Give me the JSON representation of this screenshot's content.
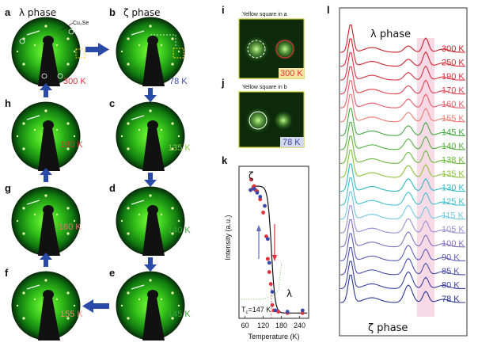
{
  "panels": [
    {
      "id": "a",
      "label": "a",
      "title": "λ phase",
      "temp": "300 K",
      "temp_color": "#e0303a",
      "note": "Cu₂Se"
    },
    {
      "id": "b",
      "label": "b",
      "title": "ζ phase",
      "temp": "78 K",
      "temp_color": "#3a4aa8"
    },
    {
      "id": "c",
      "label": "c",
      "temp": "135 K",
      "temp_color": "#8cc63f"
    },
    {
      "id": "d",
      "label": "d",
      "temp": "140 K",
      "temp_color": "#3aa83a"
    },
    {
      "id": "e",
      "label": "e",
      "temp": "145 K",
      "temp_color": "#3aa83a"
    },
    {
      "id": "f",
      "label": "f",
      "temp": "155 K",
      "temp_color": "#f08a7a"
    },
    {
      "id": "g",
      "label": "g",
      "temp": "160 K",
      "temp_color": "#f06a7a"
    },
    {
      "id": "h",
      "label": "h",
      "temp": "190 K",
      "temp_color": "#e0303a"
    }
  ],
  "panel_i": {
    "label": "i",
    "title": "Yellow square in a",
    "temp": "300 K",
    "temp_color": "#e0303a"
  },
  "panel_j": {
    "label": "j",
    "title": "Yellow square in b",
    "temp": "78 K",
    "temp_color": "#3a4aa8"
  },
  "panel_k": {
    "label": "k",
    "ylabel": "Intensity (a.u.)",
    "xlabel": "Temperature (K)",
    "zeta_label": "ζ",
    "lambda_label": "λ",
    "tc_label": "T",
    "tc_sub": "c",
    "tc_value": "=147 K",
    "x_ticks": [
      "60",
      "120",
      "180",
      "240"
    ]
  },
  "chart_data": {
    "type": "scatter",
    "xlabel": "Temperature (K)",
    "ylabel": "Intensity (a.u.)",
    "xlim": [
      40,
      270
    ],
    "ylim": [
      0,
      1.15
    ],
    "series": [
      {
        "color": "#e0303a",
        "x": [
          80,
          85,
          90,
          95,
          100,
          110,
          120,
          130,
          135,
          140,
          145,
          150,
          155,
          170,
          200,
          250
        ],
        "y": [
          1.05,
          0.98,
          1.0,
          0.97,
          0.96,
          0.9,
          0.8,
          0.62,
          0.45,
          0.35,
          0.26,
          0.1,
          0.06,
          0.05,
          0.04,
          0.04
        ]
      },
      {
        "color": "#3a4aa8",
        "x": [
          78,
          90,
          100,
          110,
          125,
          135,
          140,
          150,
          160,
          200,
          250
        ],
        "y": [
          0.97,
          0.98,
          0.95,
          0.92,
          0.85,
          0.6,
          0.42,
          0.2,
          0.06,
          0.05,
          0.06
        ]
      }
    ],
    "tc": 147
  },
  "panel_l": {
    "label": "l",
    "top_label": "λ phase",
    "bottom_label": "ζ phase",
    "curves": [
      {
        "temp": "300 K",
        "color": "#c81e2a"
      },
      {
        "temp": "250 K",
        "color": "#d02632"
      },
      {
        "temp": "190 K",
        "color": "#d8303e"
      },
      {
        "temp": "170 K",
        "color": "#e0404e"
      },
      {
        "temp": "160 K",
        "color": "#e85a66"
      },
      {
        "temp": "155 K",
        "color": "#ee7a70"
      },
      {
        "temp": "145 K",
        "color": "#44a844"
      },
      {
        "temp": "140 K",
        "color": "#52b040"
      },
      {
        "temp": "138 K",
        "color": "#6cb83c"
      },
      {
        "temp": "135 K",
        "color": "#8ac43c"
      },
      {
        "temp": "130 K",
        "color": "#30b8c0"
      },
      {
        "temp": "125 K",
        "color": "#40c0cc"
      },
      {
        "temp": "115 K",
        "color": "#70c8e0"
      },
      {
        "temp": "105 K",
        "color": "#9a8ed0"
      },
      {
        "temp": "100 K",
        "color": "#8070c0"
      },
      {
        "temp": "90 K",
        "color": "#5a5cb4"
      },
      {
        "temp": "85 K",
        "color": "#4a4eaa"
      },
      {
        "temp": "80 K",
        "color": "#3a40a0"
      },
      {
        "temp": "78 K",
        "color": "#2a3494"
      }
    ]
  }
}
